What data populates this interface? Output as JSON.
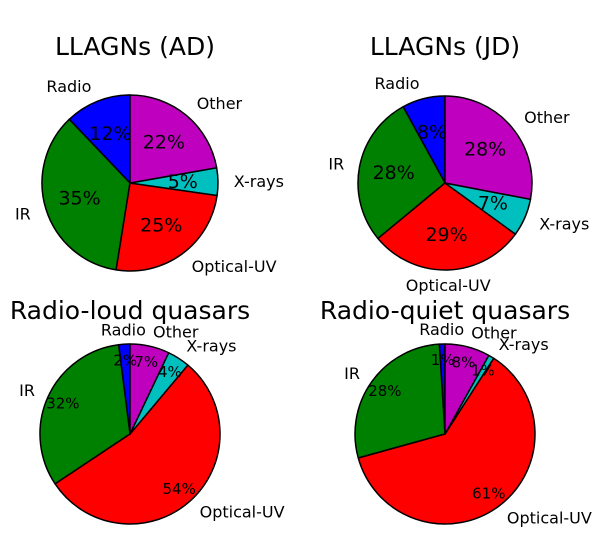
{
  "chart_data": [
    {
      "type": "pie",
      "title": "LLAGNs (AD)",
      "categories": [
        "Radio",
        "IR",
        "Optical-UV",
        "X-rays",
        "Other"
      ],
      "values": [
        12,
        35,
        25,
        5,
        22
      ],
      "labels": [
        "12%",
        "35%",
        "25%",
        "5%",
        "22%"
      ],
      "colors": [
        "#0000ff",
        "#008000",
        "#ff0000",
        "#00bfbf",
        "#bf00bf"
      ]
    },
    {
      "type": "pie",
      "title": "LLAGNs (JD)",
      "categories": [
        "Radio",
        "IR",
        "Optical-UV",
        "X-rays",
        "Other"
      ],
      "values": [
        8,
        28,
        29,
        7,
        28
      ],
      "labels": [
        "8%",
        "28%",
        "29%",
        "7%",
        "28%"
      ],
      "colors": [
        "#0000ff",
        "#008000",
        "#ff0000",
        "#00bfbf",
        "#bf00bf"
      ]
    },
    {
      "type": "pie",
      "title": "Radio-loud quasars",
      "categories": [
        "Radio",
        "IR",
        "Optical-UV",
        "X-rays",
        "Other"
      ],
      "values": [
        2,
        32,
        54,
        4,
        7
      ],
      "labels": [
        "2%",
        "32%",
        "54%",
        "4%",
        "7%"
      ],
      "colors": [
        "#0000ff",
        "#008000",
        "#ff0000",
        "#00bfbf",
        "#bf00bf"
      ]
    },
    {
      "type": "pie",
      "title": "Radio-quiet quasars",
      "categories": [
        "Radio",
        "IR",
        "Optical-UV",
        "X-rays",
        "Other"
      ],
      "values": [
        1,
        28,
        61,
        1,
        8
      ],
      "labels": [
        "1%",
        "28%",
        "61%",
        "1%",
        "8%"
      ],
      "colors": [
        "#0000ff",
        "#008000",
        "#ff0000",
        "#00bfbf",
        "#bf00bf"
      ]
    }
  ]
}
